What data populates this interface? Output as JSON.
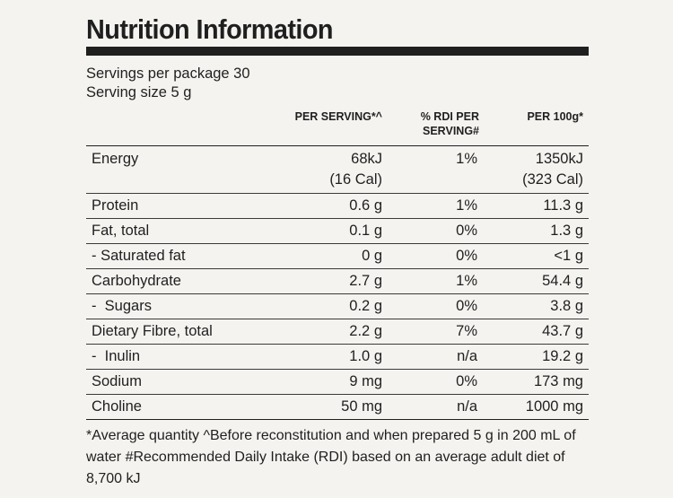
{
  "title": "Nutrition Information",
  "servings_per_package": "Servings per package 30",
  "serving_size": "Serving size 5 g",
  "columns": {
    "per_serving": "PER SERVING*^",
    "rdi_line1": "% RDI PER",
    "rdi_line2": "SERVING#",
    "per_100g": "PER 100g*"
  },
  "energy": {
    "label": "Energy",
    "per_serving_kj": "68kJ",
    "per_serving_cal": "(16 Cal)",
    "rdi": "1%",
    "per_100g_kj": "1350kJ",
    "per_100g_cal": "(323 Cal)"
  },
  "rows": [
    {
      "label": "Protein",
      "per_serving": "0.6 g",
      "rdi": "1%",
      "per_100g": "11.3 g"
    },
    {
      "label": "Fat, total",
      "per_serving": "0.1 g",
      "rdi": "0%",
      "per_100g": "1.3 g"
    },
    {
      "label": "- Saturated fat",
      "per_serving": "0 g",
      "rdi": "0%",
      "per_100g": "<1 g"
    },
    {
      "label": "Carbohydrate",
      "per_serving": "2.7 g",
      "rdi": "1%",
      "per_100g": "54.4 g"
    },
    {
      "label": "-  Sugars",
      "per_serving": "0.2 g",
      "rdi": "0%",
      "per_100g": "3.8 g"
    },
    {
      "label": "Dietary Fibre, total",
      "per_serving": "2.2 g",
      "rdi": "7%",
      "per_100g": "43.7 g"
    },
    {
      "label": "-  Inulin",
      "per_serving": "1.0 g",
      "rdi": "n/a",
      "per_100g": "19.2 g"
    },
    {
      "label": "Sodium",
      "per_serving": "9 mg",
      "rdi": "0%",
      "per_100g": "173 mg"
    },
    {
      "label": "Choline",
      "per_serving": "50 mg",
      "rdi": "n/a",
      "per_100g": "1000 mg"
    }
  ],
  "footnote": "*Average quantity ^Before reconstitution and when prepared 5 g in 200 mL of water #Recommended Daily Intake (RDI) based on an average adult diet of 8,700 kJ"
}
